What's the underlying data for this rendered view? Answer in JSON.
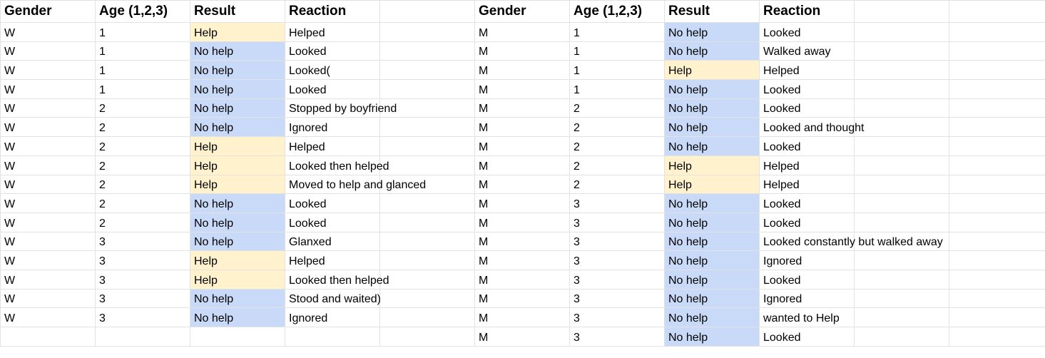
{
  "headers": [
    "Gender",
    "Age (1,2,3)",
    "Result",
    "Reaction",
    "",
    "Gender",
    "Age (1,2,3)",
    "Result",
    "Reaction",
    "",
    ""
  ],
  "colors": {
    "help": "#fff2cc",
    "no_help": "#c9daf8"
  },
  "rows": [
    [
      "W",
      "1",
      "Help",
      "Helped",
      "",
      "M",
      "1",
      "No help",
      "Looked",
      "",
      ""
    ],
    [
      "W",
      "1",
      "No help",
      "Looked",
      "",
      "M",
      "1",
      "No help",
      "Walked away",
      "",
      ""
    ],
    [
      "W",
      "1",
      "No help",
      "Looked(",
      "",
      "M",
      "1",
      "Help",
      "Helped",
      "",
      ""
    ],
    [
      "W",
      "1",
      "No help",
      "Looked",
      "",
      "M",
      "1",
      "No help",
      "Looked",
      "",
      ""
    ],
    [
      "W",
      "2",
      "No help",
      "Stopped by boyfriend",
      "",
      "M",
      "2",
      "No help",
      "Looked",
      "",
      ""
    ],
    [
      "W",
      "2",
      "No help",
      "Ignored",
      "",
      "M",
      "2",
      "No help",
      "Looked and thought",
      "",
      ""
    ],
    [
      "W",
      "2",
      "Help",
      "Helped",
      "",
      "M",
      "2",
      "No help",
      "Looked",
      "",
      ""
    ],
    [
      "W",
      "2",
      "Help",
      "Looked then helped",
      "",
      "M",
      "2",
      "Help",
      "Helped",
      "",
      ""
    ],
    [
      "W",
      "2",
      "Help",
      "Moved to help and glanced",
      "",
      "M",
      "2",
      "Help",
      "Helped",
      "",
      ""
    ],
    [
      "W",
      "2",
      "No help",
      "Looked",
      "",
      "M",
      "3",
      "No help",
      "Looked",
      "",
      ""
    ],
    [
      "W",
      "2",
      "No help",
      "Looked",
      "",
      "M",
      "3",
      "No help",
      "Looked",
      "",
      ""
    ],
    [
      "W",
      "3",
      "No help",
      "Glanxed",
      "",
      "M",
      "3",
      "No help",
      "Looked constantly but walked away",
      "",
      ""
    ],
    [
      "W",
      "3",
      "Help",
      "Helped",
      "",
      "M",
      "3",
      "No help",
      "Ignored",
      "",
      ""
    ],
    [
      "W",
      "3",
      "Help",
      "Looked then helped",
      "",
      "M",
      "3",
      "No help",
      "Looked",
      "",
      ""
    ],
    [
      "W",
      "3",
      "No help",
      "Stood and waited)",
      "",
      "M",
      "3",
      "No help",
      "Ignored",
      "",
      ""
    ],
    [
      "W",
      "3",
      "No help",
      "Ignored",
      "",
      "M",
      "3",
      "No help",
      "wanted to Help",
      "",
      ""
    ],
    [
      "",
      "",
      "",
      "",
      "",
      "M",
      "3",
      "No help",
      "Looked",
      "",
      ""
    ]
  ]
}
